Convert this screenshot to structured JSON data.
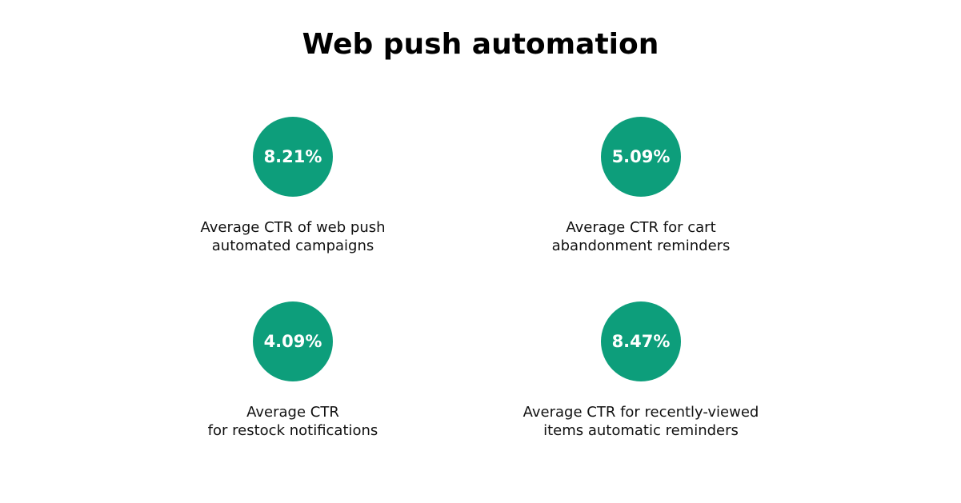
{
  "title": "Web push automation",
  "accent_color": "#0d9e7b",
  "stats": [
    {
      "value": "8.21%",
      "label_lines": [
        "Average CTR of web push",
        "automated campaigns"
      ]
    },
    {
      "value": "5.09%",
      "label_lines": [
        "Average CTR for cart",
        "abandonment reminders"
      ]
    },
    {
      "value": "4.09%",
      "label_lines": [
        "Average CTR",
        "for restock notifications"
      ]
    },
    {
      "value": "8.47%",
      "label_lines": [
        "Average CTR for recently-viewed",
        "items automatic reminders"
      ]
    }
  ]
}
